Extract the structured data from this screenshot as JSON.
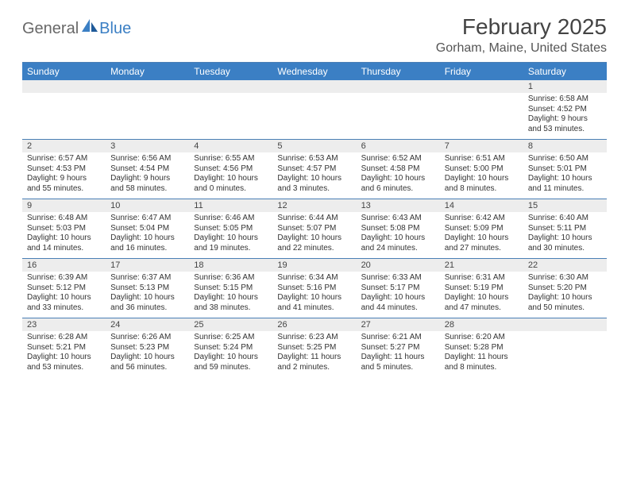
{
  "logo": {
    "text1": "General",
    "text2": "Blue",
    "color1": "#686868",
    "color2": "#3b7fc4"
  },
  "title": "February 2025",
  "location": "Gorham, Maine, United States",
  "header_bg": "#3b7fc4",
  "header_fg": "#ffffff",
  "daynum_bg": "#ededed",
  "rule_color": "#4a7fb5",
  "columns": [
    "Sunday",
    "Monday",
    "Tuesday",
    "Wednesday",
    "Thursday",
    "Friday",
    "Saturday"
  ],
  "weeks": [
    [
      null,
      null,
      null,
      null,
      null,
      null,
      {
        "n": "1",
        "sr": "Sunrise: 6:58 AM",
        "ss": "Sunset: 4:52 PM",
        "d1": "Daylight: 9 hours",
        "d2": "and 53 minutes."
      }
    ],
    [
      {
        "n": "2",
        "sr": "Sunrise: 6:57 AM",
        "ss": "Sunset: 4:53 PM",
        "d1": "Daylight: 9 hours",
        "d2": "and 55 minutes."
      },
      {
        "n": "3",
        "sr": "Sunrise: 6:56 AM",
        "ss": "Sunset: 4:54 PM",
        "d1": "Daylight: 9 hours",
        "d2": "and 58 minutes."
      },
      {
        "n": "4",
        "sr": "Sunrise: 6:55 AM",
        "ss": "Sunset: 4:56 PM",
        "d1": "Daylight: 10 hours",
        "d2": "and 0 minutes."
      },
      {
        "n": "5",
        "sr": "Sunrise: 6:53 AM",
        "ss": "Sunset: 4:57 PM",
        "d1": "Daylight: 10 hours",
        "d2": "and 3 minutes."
      },
      {
        "n": "6",
        "sr": "Sunrise: 6:52 AM",
        "ss": "Sunset: 4:58 PM",
        "d1": "Daylight: 10 hours",
        "d2": "and 6 minutes."
      },
      {
        "n": "7",
        "sr": "Sunrise: 6:51 AM",
        "ss": "Sunset: 5:00 PM",
        "d1": "Daylight: 10 hours",
        "d2": "and 8 minutes."
      },
      {
        "n": "8",
        "sr": "Sunrise: 6:50 AM",
        "ss": "Sunset: 5:01 PM",
        "d1": "Daylight: 10 hours",
        "d2": "and 11 minutes."
      }
    ],
    [
      {
        "n": "9",
        "sr": "Sunrise: 6:48 AM",
        "ss": "Sunset: 5:03 PM",
        "d1": "Daylight: 10 hours",
        "d2": "and 14 minutes."
      },
      {
        "n": "10",
        "sr": "Sunrise: 6:47 AM",
        "ss": "Sunset: 5:04 PM",
        "d1": "Daylight: 10 hours",
        "d2": "and 16 minutes."
      },
      {
        "n": "11",
        "sr": "Sunrise: 6:46 AM",
        "ss": "Sunset: 5:05 PM",
        "d1": "Daylight: 10 hours",
        "d2": "and 19 minutes."
      },
      {
        "n": "12",
        "sr": "Sunrise: 6:44 AM",
        "ss": "Sunset: 5:07 PM",
        "d1": "Daylight: 10 hours",
        "d2": "and 22 minutes."
      },
      {
        "n": "13",
        "sr": "Sunrise: 6:43 AM",
        "ss": "Sunset: 5:08 PM",
        "d1": "Daylight: 10 hours",
        "d2": "and 24 minutes."
      },
      {
        "n": "14",
        "sr": "Sunrise: 6:42 AM",
        "ss": "Sunset: 5:09 PM",
        "d1": "Daylight: 10 hours",
        "d2": "and 27 minutes."
      },
      {
        "n": "15",
        "sr": "Sunrise: 6:40 AM",
        "ss": "Sunset: 5:11 PM",
        "d1": "Daylight: 10 hours",
        "d2": "and 30 minutes."
      }
    ],
    [
      {
        "n": "16",
        "sr": "Sunrise: 6:39 AM",
        "ss": "Sunset: 5:12 PM",
        "d1": "Daylight: 10 hours",
        "d2": "and 33 minutes."
      },
      {
        "n": "17",
        "sr": "Sunrise: 6:37 AM",
        "ss": "Sunset: 5:13 PM",
        "d1": "Daylight: 10 hours",
        "d2": "and 36 minutes."
      },
      {
        "n": "18",
        "sr": "Sunrise: 6:36 AM",
        "ss": "Sunset: 5:15 PM",
        "d1": "Daylight: 10 hours",
        "d2": "and 38 minutes."
      },
      {
        "n": "19",
        "sr": "Sunrise: 6:34 AM",
        "ss": "Sunset: 5:16 PM",
        "d1": "Daylight: 10 hours",
        "d2": "and 41 minutes."
      },
      {
        "n": "20",
        "sr": "Sunrise: 6:33 AM",
        "ss": "Sunset: 5:17 PM",
        "d1": "Daylight: 10 hours",
        "d2": "and 44 minutes."
      },
      {
        "n": "21",
        "sr": "Sunrise: 6:31 AM",
        "ss": "Sunset: 5:19 PM",
        "d1": "Daylight: 10 hours",
        "d2": "and 47 minutes."
      },
      {
        "n": "22",
        "sr": "Sunrise: 6:30 AM",
        "ss": "Sunset: 5:20 PM",
        "d1": "Daylight: 10 hours",
        "d2": "and 50 minutes."
      }
    ],
    [
      {
        "n": "23",
        "sr": "Sunrise: 6:28 AM",
        "ss": "Sunset: 5:21 PM",
        "d1": "Daylight: 10 hours",
        "d2": "and 53 minutes."
      },
      {
        "n": "24",
        "sr": "Sunrise: 6:26 AM",
        "ss": "Sunset: 5:23 PM",
        "d1": "Daylight: 10 hours",
        "d2": "and 56 minutes."
      },
      {
        "n": "25",
        "sr": "Sunrise: 6:25 AM",
        "ss": "Sunset: 5:24 PM",
        "d1": "Daylight: 10 hours",
        "d2": "and 59 minutes."
      },
      {
        "n": "26",
        "sr": "Sunrise: 6:23 AM",
        "ss": "Sunset: 5:25 PM",
        "d1": "Daylight: 11 hours",
        "d2": "and 2 minutes."
      },
      {
        "n": "27",
        "sr": "Sunrise: 6:21 AM",
        "ss": "Sunset: 5:27 PM",
        "d1": "Daylight: 11 hours",
        "d2": "and 5 minutes."
      },
      {
        "n": "28",
        "sr": "Sunrise: 6:20 AM",
        "ss": "Sunset: 5:28 PM",
        "d1": "Daylight: 11 hours",
        "d2": "and 8 minutes."
      },
      null
    ]
  ]
}
